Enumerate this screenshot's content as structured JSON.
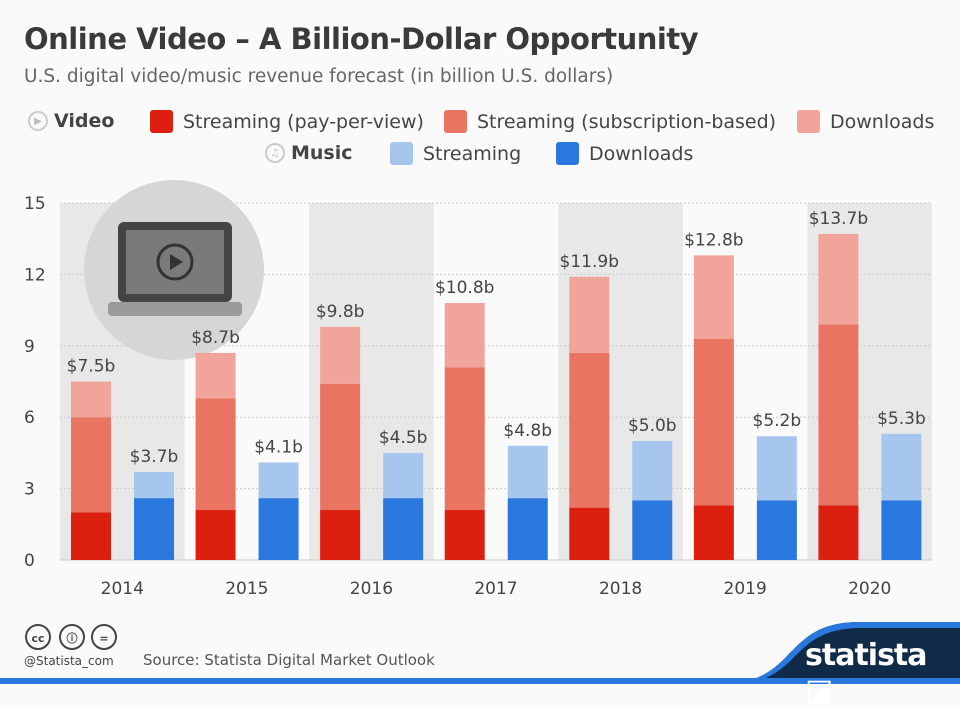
{
  "title": "Online Video – A Billion-Dollar Opportunity",
  "subtitle": "U.S. digital video/music revenue forecast (in billion U.S. dollars)",
  "legend": {
    "video_label": "Video",
    "music_label": "Music",
    "items": [
      {
        "name": "Streaming (pay-per-view)",
        "color": "#dc1f0e"
      },
      {
        "name": "Streaming (subscription-based)",
        "color": "#e87461"
      },
      {
        "name": "Downloads",
        "color": "#f1a59a"
      },
      {
        "name": "Streaming",
        "color": "#a7c6ee"
      },
      {
        "name": "Downloads",
        "color": "#2a77dd"
      }
    ]
  },
  "chart_data": {
    "type": "stacked bar",
    "categories": [
      "2014",
      "2015",
      "2016",
      "2017",
      "2018",
      "2019",
      "2020"
    ],
    "ylim": [
      0,
      15
    ],
    "yticks": [
      0,
      3,
      6,
      9,
      12,
      15
    ],
    "grid": true,
    "video": {
      "series": [
        {
          "name": "Streaming (pay-per-view)",
          "color": "#dc1f0e",
          "values": [
            2.0,
            2.1,
            2.1,
            2.1,
            2.2,
            2.3,
            2.3
          ]
        },
        {
          "name": "Streaming (subscription-based)",
          "color": "#e87461",
          "values": [
            4.0,
            4.7,
            5.3,
            6.0,
            6.5,
            7.0,
            7.6
          ]
        },
        {
          "name": "Downloads",
          "color": "#f1a59a",
          "values": [
            1.5,
            1.9,
            2.4,
            2.7,
            3.2,
            3.5,
            3.8
          ]
        }
      ],
      "totals": [
        "$7.5b",
        "$8.7b",
        "$9.8b",
        "$10.8b",
        "$11.9b",
        "$12.8b",
        "$13.7b"
      ]
    },
    "music": {
      "series": [
        {
          "name": "Downloads",
          "color": "#2a77dd",
          "values": [
            2.6,
            2.6,
            2.6,
            2.6,
            2.5,
            2.5,
            2.5
          ]
        },
        {
          "name": "Streaming",
          "color": "#a7c6ee",
          "values": [
            1.1,
            1.5,
            1.9,
            2.2,
            2.5,
            2.7,
            2.8
          ]
        }
      ],
      "totals": [
        "$3.7b",
        "$4.1b",
        "$4.5b",
        "$4.8b",
        "$5.0b",
        "$5.2b",
        "$5.3b"
      ]
    }
  },
  "footer": {
    "credit": "@Statista_com",
    "source": "Source: Statista Digital Market Outlook",
    "brand": "statista"
  }
}
